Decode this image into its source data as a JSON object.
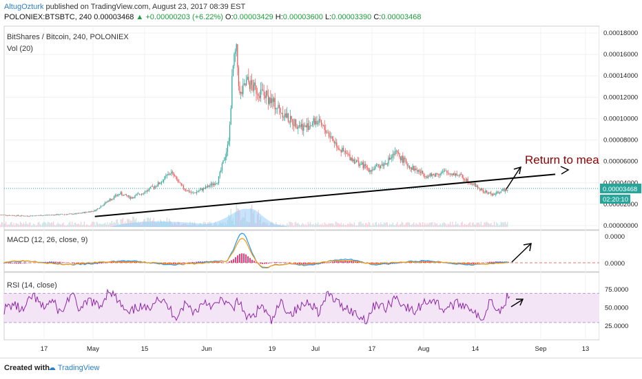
{
  "header": {
    "author": "AltugOzturk",
    "published_text": "published on TradingView.com, August 23, 2017 08:39 EST",
    "symbol": "POLONIEX:BTSBTC, 240",
    "last_price": "0.00003468",
    "change": "+0.00000203 (+6.22%)",
    "open_label": "O:",
    "open": "0.00003429",
    "high_label": "H:",
    "high": "0.00003600",
    "low_label": "L:",
    "low": "0.00003390",
    "close_label": "C:",
    "close": "0.00003468"
  },
  "footer": {
    "created_with": "Created with",
    "brand": "TradingView"
  },
  "colors": {
    "candle_up": "#26a69a",
    "candle_down": "#ef5350",
    "trendline": "#000000",
    "annotation": "#8b0000",
    "macd_line": "#2196f3",
    "signal_line": "#ff9800",
    "histogram": "#e91e63",
    "rsi_line": "#8e24aa",
    "rsi_band": "#f3e5f5",
    "price_badge": "#26a69a",
    "volume": "#90caf9"
  },
  "chart_data": [
    {
      "type": "candlestick",
      "title": "BitShares / Bitcoin, 240, POLONIEX",
      "volume_label": "Vol (20)",
      "annotation": "Return to mea",
      "current_price_label": "0.00003468",
      "countdown_label": "02:20:10",
      "x_ticks": [
        "17",
        "May",
        "15",
        "Jun",
        "19",
        "Jul",
        "17",
        "Aug",
        "14",
        "Sep",
        "13"
      ],
      "y_ticks": [
        "0.00018000",
        "0.00016000",
        "0.00014000",
        "0.00012000",
        "0.00010000",
        "0.00008000",
        "0.00006000",
        "0.00004000",
        "0.00002000",
        "0.00000000"
      ],
      "ylim": [
        0,
        0.00018
      ],
      "series": [
        {
          "date": [
            "2017-04-05",
            "2017-04-12",
            "2017-04-19",
            "2017-04-26",
            "2017-05-01",
            "2017-05-05",
            "2017-05-08",
            "2017-05-11",
            "2017-05-15",
            "2017-05-19",
            "2017-05-22",
            "2017-05-25",
            "2017-05-28",
            "2017-06-01",
            "2017-06-04",
            "2017-06-07",
            "2017-06-08",
            "2017-06-09",
            "2017-06-10",
            "2017-06-12",
            "2017-06-14",
            "2017-06-17",
            "2017-06-20",
            "2017-06-24",
            "2017-06-28",
            "2017-07-01",
            "2017-07-04",
            "2017-07-08",
            "2017-07-12",
            "2017-07-16",
            "2017-07-20",
            "2017-07-23",
            "2017-07-27",
            "2017-08-01",
            "2017-08-05",
            "2017-08-09",
            "2017-08-13",
            "2017-08-16",
            "2017-08-19",
            "2017-08-23"
          ],
          "close": [
            1e-05,
            9e-06,
            1e-05,
            1.1e-05,
            1.4e-05,
            2.4e-05,
            3e-05,
            2.6e-05,
            3.2e-05,
            4e-05,
            5e-05,
            3.6e-05,
            3e-05,
            3.6e-05,
            4.2e-05,
            7.8e-05,
            0.000145,
            0.000165,
            0.00012,
            0.000135,
            0.000128,
            0.000122,
            0.000112,
            9.8e-05,
            9.2e-05,
            9.8e-05,
            8.8e-05,
            7e-05,
            6e-05,
            5.2e-05,
            5.8e-05,
            6.8e-05,
            5.5e-05,
            4.6e-05,
            5e-05,
            4.8e-05,
            4e-05,
            3.2e-05,
            2.9e-05,
            3.5e-05
          ]
        }
      ],
      "trendline": {
        "start": [
          "2017-05-01",
          8.5e-06
        ],
        "end": [
          "2017-09-05",
          4.8e-05
        ]
      }
    },
    {
      "type": "line",
      "title": "MACD (12, 26, close, 9)",
      "y_ticks": [
        "0.0000",
        "0.0000"
      ]
    },
    {
      "type": "line",
      "title": "RSI (14, close)",
      "y_ticks": [
        "75.0000",
        "50.0000",
        "25.0000"
      ],
      "ylim": [
        10,
        95
      ],
      "band": [
        30,
        70
      ],
      "values": [
        48,
        55,
        45,
        68,
        50,
        60,
        42,
        70,
        46,
        62,
        50,
        76,
        58,
        40,
        52,
        47,
        66,
        54,
        38,
        56,
        44,
        60,
        52,
        62,
        46,
        40,
        36,
        54,
        30,
        58,
        42,
        50,
        60,
        44,
        70,
        56,
        50,
        40,
        34,
        58,
        48,
        66,
        52,
        44,
        58,
        62,
        48,
        54,
        56,
        50,
        30,
        64,
        44,
        72
      ]
    }
  ]
}
